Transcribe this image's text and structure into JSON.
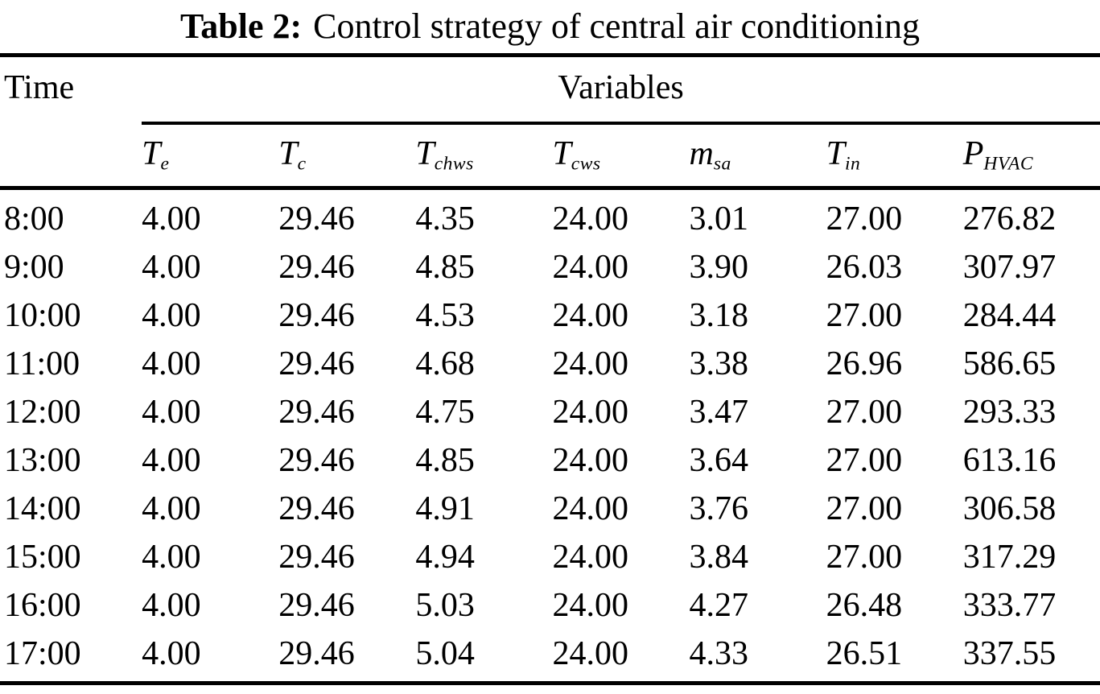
{
  "page": {
    "title_prefix": "Table 2:",
    "title_text": "Control strategy of central air conditioning"
  },
  "table": {
    "time_label": "Time",
    "group_label": "Variables",
    "columns": [
      {
        "base": "T",
        "sub": "e"
      },
      {
        "base": "T",
        "sub": "c"
      },
      {
        "base": "T",
        "sub": "chws"
      },
      {
        "base": "T",
        "sub": "cws"
      },
      {
        "base": "m",
        "sub": "sa"
      },
      {
        "base": "T",
        "sub": "in"
      },
      {
        "base": "P",
        "sub": "HVAC"
      }
    ],
    "rows": [
      {
        "time": "8:00",
        "values": [
          "4.00",
          "29.46",
          "4.35",
          "24.00",
          "3.01",
          "27.00",
          "276.82"
        ]
      },
      {
        "time": "9:00",
        "values": [
          "4.00",
          "29.46",
          "4.85",
          "24.00",
          "3.90",
          "26.03",
          "307.97"
        ]
      },
      {
        "time": "10:00",
        "values": [
          "4.00",
          "29.46",
          "4.53",
          "24.00",
          "3.18",
          "27.00",
          "284.44"
        ]
      },
      {
        "time": "11:00",
        "values": [
          "4.00",
          "29.46",
          "4.68",
          "24.00",
          "3.38",
          "26.96",
          "586.65"
        ]
      },
      {
        "time": "12:00",
        "values": [
          "4.00",
          "29.46",
          "4.75",
          "24.00",
          "3.47",
          "27.00",
          "293.33"
        ]
      },
      {
        "time": "13:00",
        "values": [
          "4.00",
          "29.46",
          "4.85",
          "24.00",
          "3.64",
          "27.00",
          "613.16"
        ]
      },
      {
        "time": "14:00",
        "values": [
          "4.00",
          "29.46",
          "4.91",
          "24.00",
          "3.76",
          "27.00",
          "306.58"
        ]
      },
      {
        "time": "15:00",
        "values": [
          "4.00",
          "29.46",
          "4.94",
          "24.00",
          "3.84",
          "27.00",
          "317.29"
        ]
      },
      {
        "time": "16:00",
        "values": [
          "4.00",
          "29.46",
          "5.03",
          "24.00",
          "4.27",
          "26.48",
          "333.77"
        ]
      },
      {
        "time": "17:00",
        "values": [
          "4.00",
          "29.46",
          "5.04",
          "24.00",
          "4.33",
          "26.51",
          "337.55"
        ]
      }
    ],
    "text_color": "#000000",
    "background_color": "#ffffff"
  }
}
